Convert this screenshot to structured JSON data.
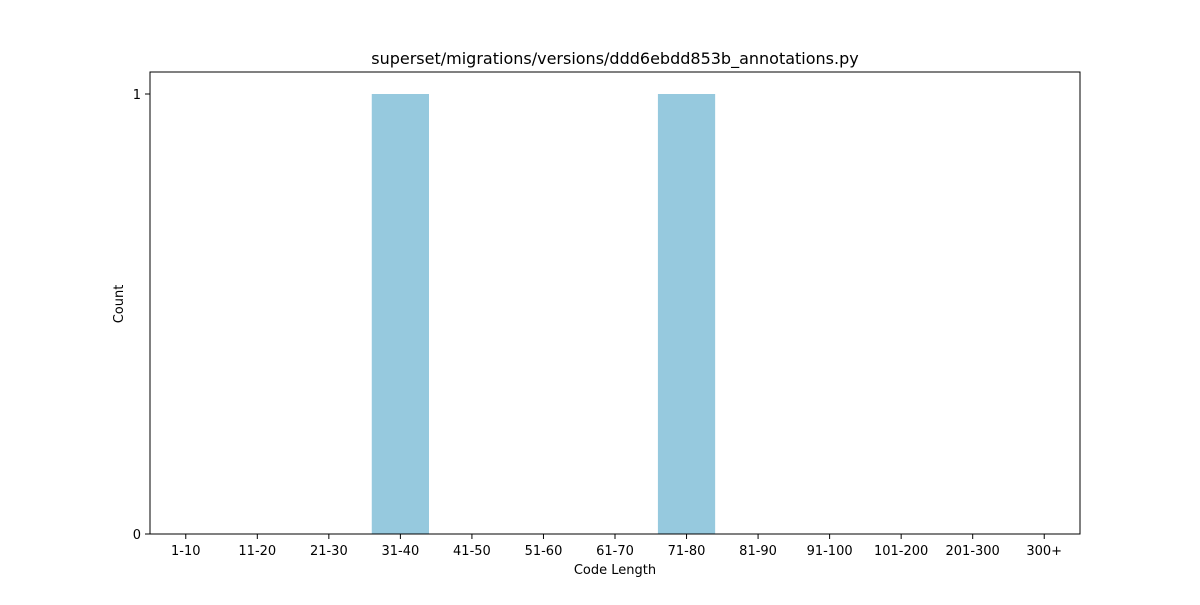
{
  "chart_data": {
    "type": "bar",
    "title": "superset/migrations/versions/ddd6ebdd853b_annotations.py",
    "xlabel": "Code Length",
    "ylabel": "Count",
    "categories": [
      "1-10",
      "11-20",
      "21-30",
      "31-40",
      "41-50",
      "51-60",
      "61-70",
      "71-80",
      "81-90",
      "91-100",
      "101-200",
      "201-300",
      "300+"
    ],
    "values": [
      0,
      0,
      0,
      1,
      0,
      0,
      0,
      1,
      0,
      0,
      0,
      0,
      0
    ],
    "ylim": [
      0,
      1
    ],
    "yticks": [
      0,
      1
    ],
    "grid": false,
    "legend": "none",
    "bar_color": "#96c9de"
  }
}
